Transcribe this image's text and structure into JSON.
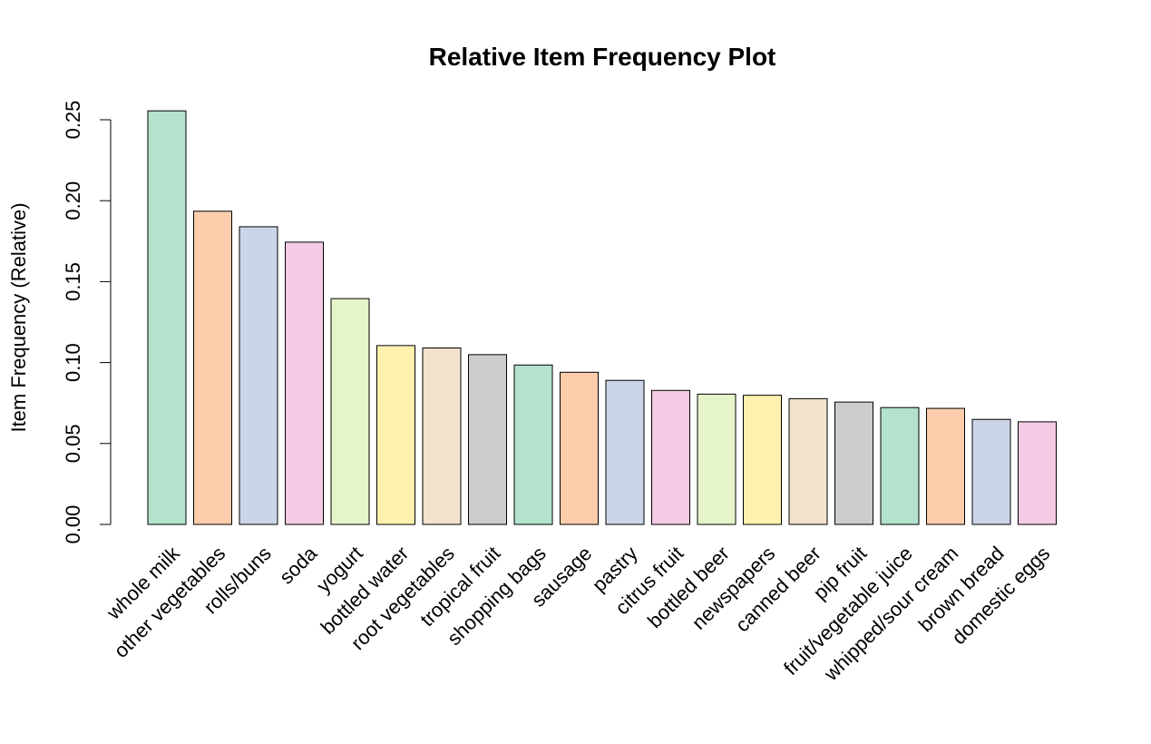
{
  "chart_data": {
    "type": "bar",
    "title": "Relative Item Frequency Plot",
    "xlabel": "",
    "ylabel": "Item Frequency (Relative)",
    "ylim": [
      0,
      0.25
    ],
    "yticks": [
      "0.00",
      "0.05",
      "0.10",
      "0.15",
      "0.20",
      "0.25"
    ],
    "grid": false,
    "categories": [
      "whole milk",
      "other vegetables",
      "rolls/buns",
      "soda",
      "yogurt",
      "bottled water",
      "root vegetables",
      "tropical fruit",
      "shopping bags",
      "sausage",
      "pastry",
      "citrus fruit",
      "bottled beer",
      "newspapers",
      "canned beer",
      "pip fruit",
      "fruit/vegetable juice",
      "whipped/sour cream",
      "brown bread",
      "domestic eggs"
    ],
    "values": [
      0.2555,
      0.1935,
      0.1839,
      0.1744,
      0.1395,
      0.1105,
      0.109,
      0.1049,
      0.0985,
      0.094,
      0.089,
      0.0828,
      0.0805,
      0.0798,
      0.0777,
      0.0756,
      0.0722,
      0.0717,
      0.0649,
      0.0634
    ],
    "colors": [
      "#B3E2CD",
      "#FDCDAC",
      "#CBD5E8",
      "#F4CAE4",
      "#E6F5C9",
      "#FFF2AE",
      "#F1E2CC",
      "#CCCCCC"
    ]
  }
}
